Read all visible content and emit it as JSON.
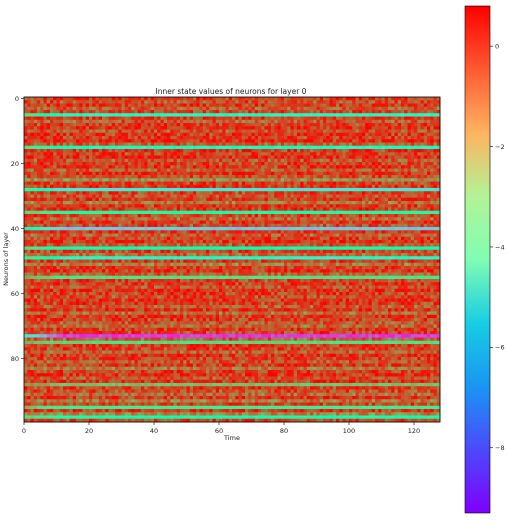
{
  "chart_data": {
    "type": "heatmap",
    "title": "Inner state values of neurons for layer 0",
    "xlabel": "Time",
    "ylabel": "Neurons of layer",
    "xlim": [
      0,
      127
    ],
    "ylim": [
      0,
      99
    ],
    "x_ticks": [
      0,
      20,
      40,
      60,
      80,
      100,
      120
    ],
    "y_ticks": [
      0,
      20,
      40,
      60,
      80
    ],
    "x_tick_labels": [
      "0",
      "20",
      "40",
      "60",
      "80",
      "100",
      "120"
    ],
    "y_tick_labels": [
      "0",
      "20",
      "40",
      "60",
      "80"
    ],
    "colormap": "rainbow",
    "color_range": [
      -9.3,
      0.8
    ],
    "colorbar_ticks": [
      0,
      -2,
      -4,
      -6,
      -8
    ],
    "colorbar_tick_labels": [
      "0",
      "−2",
      "−4",
      "−6",
      "−8"
    ],
    "n_rows": 100,
    "n_cols": 128,
    "row_levels": [
      0.1,
      -0.2,
      0.1,
      -0.5,
      0.0,
      -4.8,
      0.1,
      -0.4,
      0.0,
      0.2,
      -0.3,
      0.1,
      0.0,
      0.3,
      -0.4,
      -4.6,
      0.1,
      0.0,
      0.2,
      -0.3,
      0.0,
      0.1,
      -0.4,
      0.2,
      -0.2,
      -1.2,
      0.0,
      0.1,
      -5.6,
      0.0,
      -0.3,
      0.1,
      -0.8,
      0.0,
      0.2,
      -3.6,
      0.0,
      -0.6,
      0.1,
      -0.2,
      -6.4,
      0.1,
      -0.5,
      0.0,
      0.2,
      -0.3,
      -4.2,
      0.0,
      -0.6,
      -5.0,
      0.1,
      -0.9,
      0.0,
      0.2,
      -0.4,
      -2.8,
      0.0,
      0.1,
      -0.3,
      0.2,
      0.0,
      -0.2,
      0.1,
      0.0,
      -0.4,
      0.2,
      -0.7,
      0.1,
      0.0,
      -0.3,
      -0.6,
      0.1,
      0.0,
      -8.6,
      -0.4,
      -2.6,
      0.1,
      0.0,
      -0.5,
      0.2,
      0.0,
      -0.3,
      0.1,
      -0.8,
      0.0,
      0.2,
      -0.4,
      0.1,
      -2.0,
      0.0,
      -0.2,
      -0.6,
      0.1,
      -0.9,
      0.0,
      -3.2,
      0.2,
      -1.0,
      -3.9,
      0.0
    ]
  }
}
